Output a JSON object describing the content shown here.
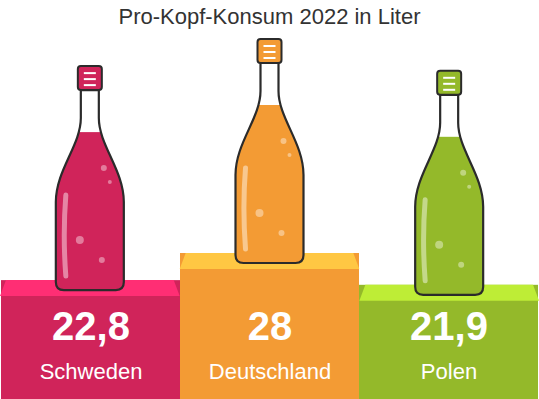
{
  "chart_data": {
    "type": "bar",
    "title": "Pro-Kopf-Konsum 2022 in Liter",
    "categories": [
      "Schweden",
      "Deutschland",
      "Polen"
    ],
    "values": [
      22.8,
      28,
      21.9
    ],
    "value_labels": [
      "22,8",
      "28",
      "21,9"
    ],
    "colors": [
      "#d0245a",
      "#f39b34",
      "#94b92a"
    ],
    "data_labels": true,
    "tick_labels": "x"
  }
}
